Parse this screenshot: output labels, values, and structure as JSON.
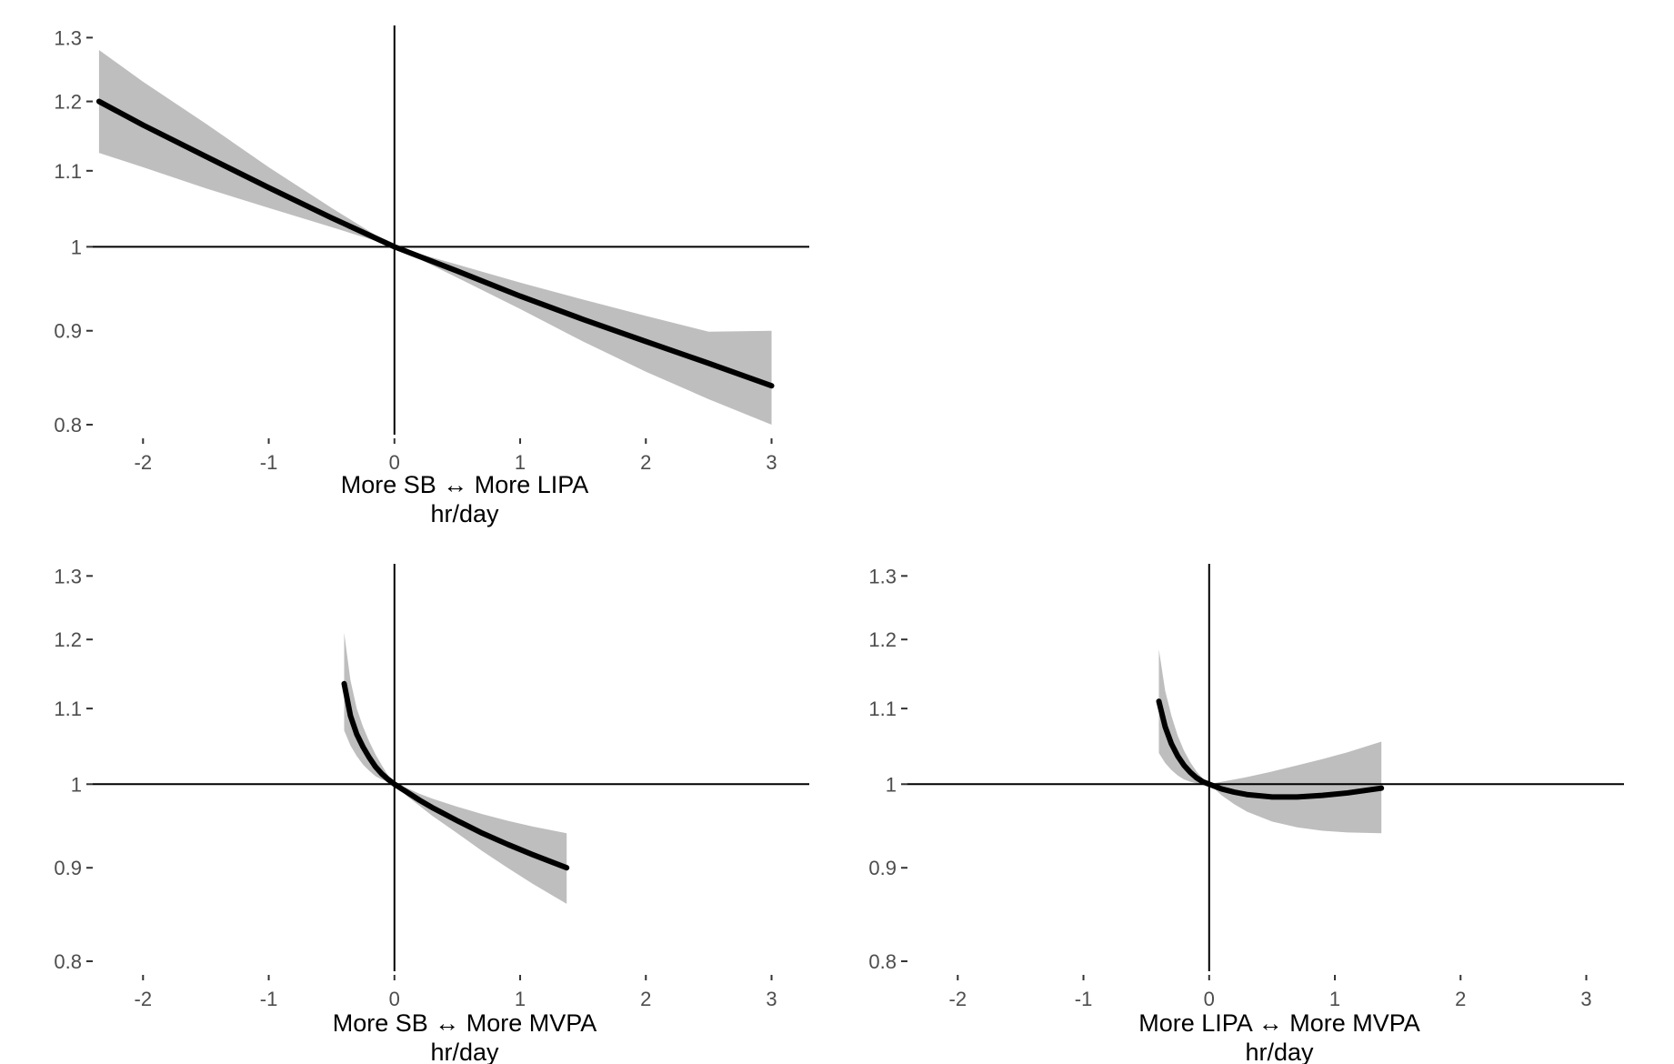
{
  "chart_data": [
    {
      "type": "line",
      "panel": "top-left",
      "xlabel": "More SB ↔ More LIPA",
      "xlabel_unit": "hr/day",
      "ylabel": "",
      "xlim": [
        -2.4,
        3.3
      ],
      "ylim": [
        0.79,
        1.32
      ],
      "log_y": true,
      "x_ticks": [
        -2,
        -1,
        0,
        1,
        2,
        3
      ],
      "x_tick_labels": [
        "-2",
        "-1",
        "0",
        "1",
        "2",
        "3"
      ],
      "y_ticks": [
        0.8,
        0.9,
        1.0,
        1.1,
        1.2,
        1.3
      ],
      "y_tick_labels": [
        "0.8",
        "0.9",
        "1",
        "1.1",
        "1.2",
        "1.3"
      ],
      "grid": false,
      "series": [
        {
          "x": [
            -2.35,
            -2.0,
            -1.5,
            -1.0,
            -0.5,
            0.0,
            0.5,
            1.0,
            1.5,
            2.0,
            2.5,
            3.0
          ],
          "y": [
            1.2,
            1.165,
            1.12,
            1.077,
            1.037,
            1.0,
            0.97,
            0.94,
            0.913,
            0.888,
            0.864,
            0.84
          ],
          "lower": [
            1.125,
            1.105,
            1.076,
            1.05,
            1.025,
            1.0,
            0.962,
            0.925,
            0.888,
            0.855,
            0.826,
            0.8
          ],
          "upper": [
            1.28,
            1.23,
            1.167,
            1.105,
            1.05,
            1.0,
            0.978,
            0.956,
            0.936,
            0.917,
            0.899,
            0.9
          ]
        }
      ]
    },
    {
      "type": "line",
      "panel": "bottom-left",
      "xlabel": "More SB ↔ More MVPA",
      "xlabel_unit": "hr/day",
      "ylabel": "",
      "xlim": [
        -2.4,
        3.3
      ],
      "ylim": [
        0.79,
        1.32
      ],
      "log_y": true,
      "x_ticks": [
        -2,
        -1,
        0,
        1,
        2,
        3
      ],
      "x_tick_labels": [
        "-2",
        "-1",
        "0",
        "1",
        "2",
        "3"
      ],
      "y_ticks": [
        0.8,
        0.9,
        1.0,
        1.1,
        1.2,
        1.3
      ],
      "y_tick_labels": [
        "0.8",
        "0.9",
        "1",
        "1.1",
        "1.2",
        "1.3"
      ],
      "grid": false,
      "series": [
        {
          "x": [
            -0.4,
            -0.35,
            -0.3,
            -0.25,
            -0.2,
            -0.15,
            -0.1,
            -0.05,
            0.0,
            0.1,
            0.2,
            0.3,
            0.5,
            0.7,
            0.9,
            1.1,
            1.37
          ],
          "y": [
            1.135,
            1.09,
            1.065,
            1.048,
            1.034,
            1.022,
            1.013,
            1.006,
            1.0,
            0.99,
            0.98,
            0.971,
            0.955,
            0.94,
            0.927,
            0.915,
            0.9
          ],
          "lower": [
            1.07,
            1.05,
            1.036,
            1.025,
            1.017,
            1.01,
            1.006,
            1.003,
            1.0,
            0.985,
            0.973,
            0.961,
            0.94,
            0.919,
            0.9,
            0.882,
            0.86
          ],
          "upper": [
            1.21,
            1.14,
            1.1,
            1.075,
            1.055,
            1.038,
            1.024,
            1.011,
            1.0,
            0.995,
            0.988,
            0.982,
            0.972,
            0.963,
            0.955,
            0.948,
            0.94
          ]
        }
      ]
    },
    {
      "type": "line",
      "panel": "bottom-right",
      "xlabel": "More LIPA ↔ More MVPA",
      "xlabel_unit": "hr/day",
      "ylabel": "",
      "xlim": [
        -2.4,
        3.3
      ],
      "ylim": [
        0.79,
        1.32
      ],
      "log_y": true,
      "x_ticks": [
        -2,
        -1,
        0,
        1,
        2,
        3
      ],
      "x_tick_labels": [
        "-2",
        "-1",
        "0",
        "1",
        "2",
        "3"
      ],
      "y_ticks": [
        0.8,
        0.9,
        1.0,
        1.1,
        1.2,
        1.3
      ],
      "y_tick_labels": [
        "0.8",
        "0.9",
        "1",
        "1.1",
        "1.2",
        "1.3"
      ],
      "grid": false,
      "series": [
        {
          "x": [
            -0.4,
            -0.35,
            -0.3,
            -0.25,
            -0.2,
            -0.15,
            -0.1,
            -0.05,
            0.0,
            0.1,
            0.2,
            0.3,
            0.5,
            0.7,
            0.9,
            1.1,
            1.37
          ],
          "y": [
            1.11,
            1.075,
            1.052,
            1.036,
            1.024,
            1.015,
            1.008,
            1.003,
            1.0,
            0.994,
            0.99,
            0.987,
            0.984,
            0.984,
            0.986,
            0.989,
            0.995
          ],
          "lower": [
            1.04,
            1.027,
            1.018,
            1.011,
            1.006,
            1.003,
            1.001,
            1.0,
            1.0,
            0.986,
            0.975,
            0.966,
            0.954,
            0.947,
            0.943,
            0.941,
            0.94
          ],
          "upper": [
            1.185,
            1.125,
            1.09,
            1.063,
            1.043,
            1.028,
            1.016,
            1.007,
            1.0,
            1.003,
            1.006,
            1.009,
            1.016,
            1.024,
            1.032,
            1.041,
            1.055
          ]
        }
      ]
    }
  ]
}
